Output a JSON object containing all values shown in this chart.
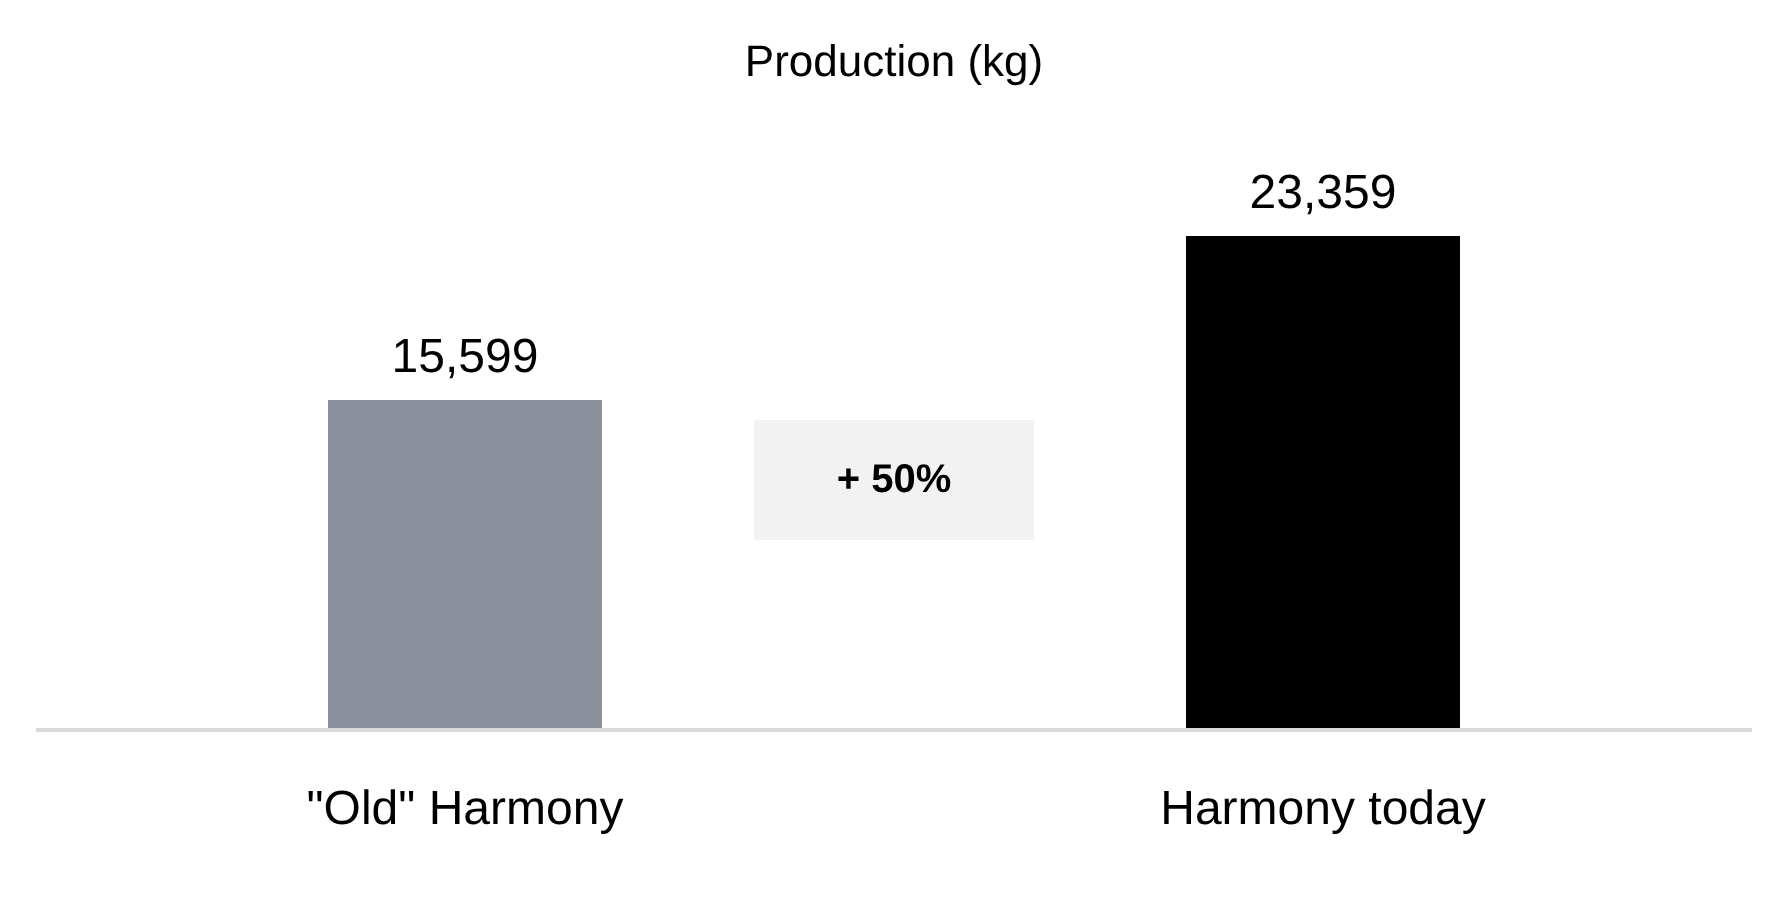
{
  "chart_data": {
    "type": "bar",
    "title": "Production (kg)",
    "categories": [
      "\"Old\" Harmony",
      "Harmony today"
    ],
    "values": [
      15599,
      23359
    ],
    "colors": [
      "#8c8f9c",
      "#000000"
    ],
    "value_labels": [
      "15,599",
      "23,359"
    ],
    "annotations": [
      "+ 50%"
    ]
  }
}
